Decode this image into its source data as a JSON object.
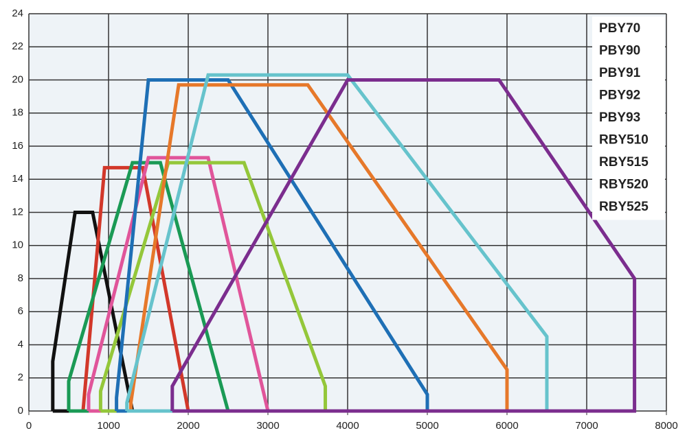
{
  "chart_data": {
    "type": "line",
    "xlim": [
      0,
      8000
    ],
    "xticks": [
      0,
      1000,
      2000,
      3000,
      4000,
      5000,
      6000,
      7000,
      8000
    ],
    "ylim": [
      0,
      24
    ],
    "yticks": [
      0,
      2,
      4,
      6,
      8,
      10,
      12,
      14,
      16,
      18,
      20,
      22,
      24
    ],
    "grid": true,
    "legend": "top-right",
    "series": [
      {
        "name": "PBY70",
        "color": "#111111",
        "x": [
          300,
          300,
          580,
          800,
          1300,
          300
        ],
        "values": [
          0,
          3,
          12,
          12,
          0,
          0
        ]
      },
      {
        "name": "PBY90",
        "color": "#d2382a",
        "x": [
          680,
          950,
          1430,
          2000,
          680
        ],
        "values": [
          0,
          14.7,
          14.7,
          0,
          0
        ]
      },
      {
        "name": "PBY91",
        "color": "#1a9a55",
        "x": [
          500,
          500,
          1300,
          1650,
          2500,
          500
        ],
        "values": [
          0,
          1.8,
          15,
          15,
          0,
          0
        ]
      },
      {
        "name": "PBY92",
        "color": "#e0559a",
        "x": [
          750,
          750,
          1500,
          2250,
          3000,
          750
        ],
        "values": [
          0,
          1,
          15.3,
          15.3,
          0,
          0
        ]
      },
      {
        "name": "PBY93",
        "color": "#94c73a",
        "x": [
          900,
          900,
          1750,
          2700,
          3720,
          3720,
          900
        ],
        "values": [
          0,
          1.2,
          15,
          15,
          1.5,
          0,
          0
        ]
      },
      {
        "name": "RBY510",
        "color": "#1e6fb5",
        "x": [
          1100,
          1100,
          1500,
          2500,
          5000,
          5000,
          1100
        ],
        "values": [
          0,
          0.8,
          20,
          20,
          1,
          0,
          0
        ]
      },
      {
        "name": "RBY515",
        "color": "#e6782a",
        "x": [
          1280,
          1280,
          1880,
          3500,
          6000,
          6000,
          1280
        ],
        "values": [
          0,
          0.5,
          19.7,
          19.7,
          2.5,
          0,
          0
        ]
      },
      {
        "name": "RBY520",
        "color": "#66c3cc",
        "x": [
          1230,
          1230,
          2250,
          4000,
          6500,
          6500,
          1230
        ],
        "values": [
          0,
          0.5,
          20.3,
          20.3,
          4.5,
          0,
          0
        ]
      },
      {
        "name": "RBY525",
        "color": "#7b2d8e",
        "x": [
          1800,
          1800,
          4000,
          5900,
          7600,
          7600,
          1800
        ],
        "values": [
          0,
          1.5,
          20,
          20,
          8,
          0,
          0
        ]
      }
    ]
  }
}
